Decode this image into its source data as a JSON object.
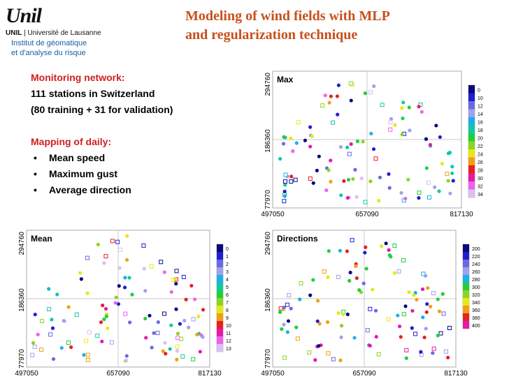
{
  "logo": {
    "wordmark": "Unil",
    "sub_bold": "UNIL",
    "sub_sep": " | ",
    "sub_rest": "Université de Lausanne",
    "line1": "Institut de géomatique",
    "line2": "et d'analyse du risque"
  },
  "title": {
    "line1": "Modeling of wind fields with MLP",
    "line2": "and regularization technique"
  },
  "notes": {
    "heading1": "Monitoring network:",
    "line1": "111 stations in Switzerland",
    "line2": "(80 training + 31 for validation)",
    "heading2": "Mapping of daily:",
    "bullet_char": "•",
    "bullets": [
      "Mean speed",
      "Maximum gust",
      "Average direction"
    ]
  },
  "maps": {
    "max": {
      "title": "Max",
      "x_ticks": [
        "497050",
        "657090",
        "817130"
      ],
      "y_ticks": [
        "294760",
        "186360",
        "77970"
      ],
      "legend": [
        "0",
        "10",
        "12",
        "14",
        "16",
        "18",
        "20",
        "22",
        "24",
        "26",
        "28",
        "30",
        "32",
        "34"
      ]
    },
    "mean": {
      "title": "Mean",
      "x_ticks": [
        "497050",
        "657090",
        "817130"
      ],
      "y_ticks": [
        "294760",
        "186360",
        "77970"
      ],
      "legend": [
        "0",
        "1",
        "2",
        "3",
        "4",
        "5",
        "6",
        "7",
        "8",
        "9",
        "10",
        "11",
        "12",
        "13"
      ]
    },
    "directions": {
      "title": "Directions",
      "x_ticks": [
        "497050",
        "657090",
        "817130"
      ],
      "y_ticks": [
        "294760",
        "186360",
        "77970"
      ],
      "legend": [
        "200",
        "220",
        "240",
        "260",
        "280",
        "300",
        "320",
        "340",
        "360",
        "380",
        "400"
      ]
    }
  },
  "colors": {
    "title": "#c8501c",
    "heading": "#d02020",
    "legend_14": [
      "#0a0a80",
      "#1f1fd0",
      "#6a6ae0",
      "#9fa0f0",
      "#1ab0e8",
      "#10c8a8",
      "#1fcf3f",
      "#8bd61e",
      "#e8e818",
      "#f0a010",
      "#e82020",
      "#e818a8",
      "#f060f0",
      "#d8c0f0"
    ],
    "legend_11": [
      "#0a0a80",
      "#1f1fd0",
      "#6a6ae0",
      "#9fa0f0",
      "#1ab0e8",
      "#1fcf3f",
      "#8bd61e",
      "#e8e818",
      "#f0a010",
      "#e82020",
      "#e818a8"
    ]
  }
}
